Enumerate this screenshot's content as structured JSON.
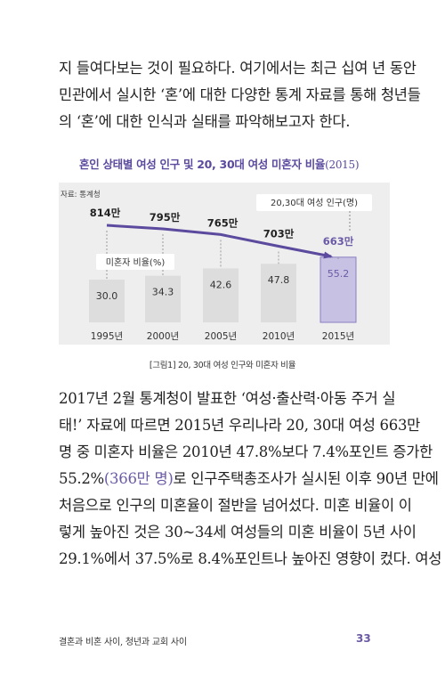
{
  "intro_lines": [
    "지 들여다보는 것이 필요하다. 여기에서는 최근 십여 년 동안",
    "민관에서 실시한 ‘혼’에 대한 다양한 통계 자료를 통해 청년들",
    "의 ‘혼’에 대한 인식과 실태를 파악해보고자 한다."
  ],
  "figure": {
    "title": "혼인 상태별 여성 인구 및 20, 30대 여성 미혼자 비율",
    "title_year": "(2015)",
    "source": "자료: 통계청",
    "legend_population": "20,30대 여성 인구(명)",
    "legend_ratio": "미혼자 비율(%)",
    "caption": "[그림1] 20, 30대 여성 인구와 미혼자 비율",
    "highlight_color": "#6b5aa6"
  },
  "chart_data": {
    "type": "bar",
    "categories": [
      "1995년",
      "2000년",
      "2005년",
      "2010년",
      "2015년"
    ],
    "series": [
      {
        "name": "미혼자 비율(%)",
        "values": [
          30.0,
          34.3,
          42.6,
          47.8,
          55.2
        ]
      },
      {
        "name": "20,30대 여성 인구(명)",
        "values": [
          814,
          795,
          765,
          703,
          663
        ]
      }
    ],
    "bar_labels": [
      "30.0",
      "34.3",
      "42.6",
      "47.8",
      "55.2"
    ],
    "population_labels": [
      "814만",
      "795만",
      "765만",
      "703만",
      "663만"
    ],
    "ylim": [
      0,
      100
    ],
    "highlight_index": 4
  },
  "body_lines": [
    "2017년 2월 통계청이 발표한 ‘여성·출산력·아동 주거 실",
    "태!’ 자료에 따르면 2015년 우리나라 20, 30대 여성 663만",
    "명 중 미혼자 비율은 2010년 47.8%보다 7.4%포인트 증가한",
    [
      "55.2%",
      "(366만 명)",
      "로 인구주택총조사가 실시된 이후 90년 만에"
    ],
    "처음으로 인구의 미혼율이 절반을 넘어섰다. 미혼 비율이 이",
    "렇게 높아진 것은 30~34세 여성들의 미혼 비율이 5년 사이",
    "29.1%에서 37.5%로 8.4%포인트나 높아진 영향이 컸다. 여성"
  ],
  "footer": {
    "running_title": "결혼과 비혼 사이, 청년과 교회 사이",
    "page_number": "33"
  }
}
